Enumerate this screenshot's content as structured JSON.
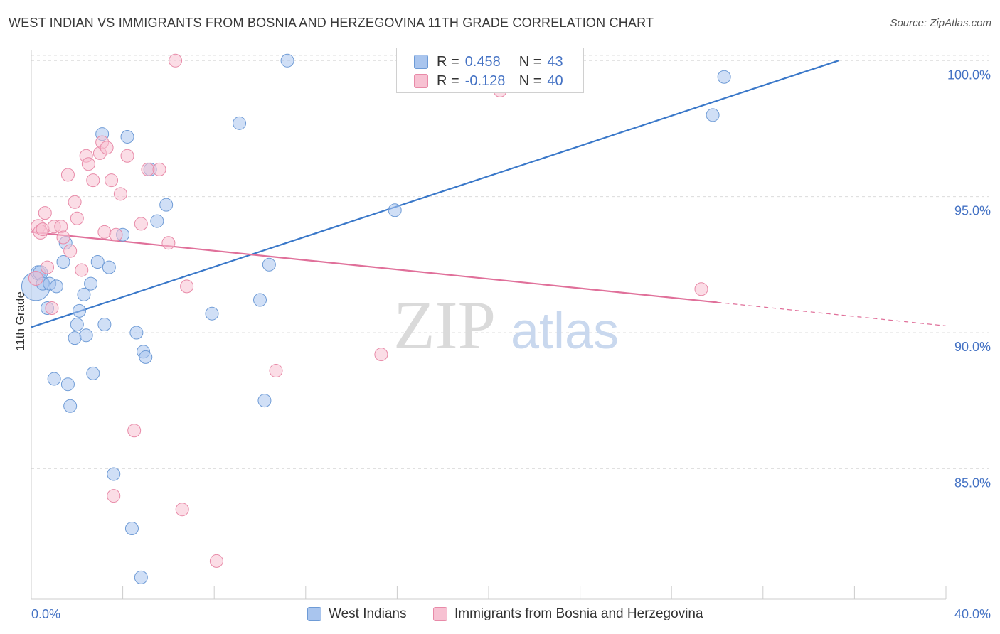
{
  "title": "WEST INDIAN VS IMMIGRANTS FROM BOSNIA AND HERZEGOVINA 11TH GRADE CORRELATION CHART",
  "source": "Source: ZipAtlas.com",
  "watermark": {
    "zip": "ZIP",
    "atlas": "atlas"
  },
  "legend_stats": [
    {
      "r_label": "R =",
      "r_value": "0.458",
      "n_label": "N =",
      "n_value": "43",
      "color": "#a9c5ee",
      "border": "#6e9bd6"
    },
    {
      "r_label": "R =",
      "r_value": "-0.128",
      "n_label": "N =",
      "n_value": "40",
      "color": "#f7c1d2",
      "border": "#e88aa8"
    }
  ],
  "bottom_legend": [
    {
      "label": "West Indians",
      "color": "#a9c5ee",
      "border": "#6e9bd6"
    },
    {
      "label": "Immigrants from Bosnia and Herzegovina",
      "color": "#f7c1d2",
      "border": "#e88aa8"
    }
  ],
  "chart_data": {
    "type": "scatter",
    "title": "WEST INDIAN VS IMMIGRANTS FROM BOSNIA AND HERZEGOVINA 11TH GRADE CORRELATION CHART",
    "xlabel": "",
    "ylabel": "11th Grade",
    "xlim": [
      0,
      40
    ],
    "ylim": [
      80.2,
      100.4
    ],
    "x_tick_labels": [
      {
        "value": 0,
        "label": "0.0%"
      },
      {
        "value": 40,
        "label": "40.0%"
      }
    ],
    "x_minor_ticks": [
      4,
      8,
      12,
      16,
      20,
      24,
      28,
      32,
      36,
      40
    ],
    "y_ticks": [
      {
        "value": 100,
        "label": "100.0%"
      },
      {
        "value": 95,
        "label": "95.0%"
      },
      {
        "value": 90,
        "label": "90.0%"
      },
      {
        "value": 85,
        "label": "85.0%"
      }
    ],
    "series": [
      {
        "name": "West Indians",
        "color": "#a9c5ee",
        "stroke": "#6e9bd6",
        "line_color": "#3a78c9",
        "trend": {
          "x0": 0,
          "y0": 90.2,
          "x1": 35.3,
          "y1": 100.0,
          "dashed_from": null
        },
        "points": [
          [
            0.2,
            91.7,
            20
          ],
          [
            0.3,
            92.2,
            10
          ],
          [
            0.4,
            92.2,
            10
          ],
          [
            0.5,
            91.8,
            9
          ],
          [
            0.7,
            90.9,
            9
          ],
          [
            0.8,
            91.8,
            9
          ],
          [
            1.0,
            88.3,
            9
          ],
          [
            1.1,
            91.7,
            9
          ],
          [
            1.4,
            92.6,
            9
          ],
          [
            1.5,
            93.3,
            9
          ],
          [
            1.6,
            88.1,
            9
          ],
          [
            1.7,
            87.3,
            9
          ],
          [
            1.9,
            89.8,
            9
          ],
          [
            2.0,
            90.3,
            9
          ],
          [
            2.1,
            90.8,
            9
          ],
          [
            2.3,
            91.4,
            9
          ],
          [
            2.4,
            89.9,
            9
          ],
          [
            2.6,
            91.8,
            9
          ],
          [
            2.7,
            88.5,
            9
          ],
          [
            2.9,
            92.6,
            9
          ],
          [
            3.1,
            97.3,
            9
          ],
          [
            3.2,
            90.3,
            9
          ],
          [
            3.4,
            92.4,
            9
          ],
          [
            3.6,
            84.8,
            9
          ],
          [
            4.0,
            93.6,
            9
          ],
          [
            4.2,
            97.2,
            9
          ],
          [
            4.4,
            82.8,
            9
          ],
          [
            4.6,
            90.0,
            9
          ],
          [
            4.8,
            81.0,
            9
          ],
          [
            4.9,
            89.3,
            9
          ],
          [
            5.0,
            89.1,
            9
          ],
          [
            5.2,
            96.0,
            9
          ],
          [
            5.5,
            94.1,
            9
          ],
          [
            5.9,
            94.7,
            9
          ],
          [
            7.9,
            90.7,
            9
          ],
          [
            9.1,
            97.7,
            9
          ],
          [
            10.0,
            91.2,
            9
          ],
          [
            10.2,
            87.5,
            9
          ],
          [
            10.4,
            92.5,
            9
          ],
          [
            11.2,
            100.0,
            9
          ],
          [
            15.9,
            94.5,
            9
          ],
          [
            29.8,
            98.0,
            9
          ],
          [
            30.3,
            99.4,
            9
          ]
        ]
      },
      {
        "name": "Immigrants from Bosnia and Herzegovina",
        "color": "#f7c1d2",
        "stroke": "#e88aa8",
        "line_color": "#e0709a",
        "trend": {
          "x0": 0,
          "y0": 93.7,
          "x1": 40,
          "y1": 90.25,
          "dashed_from": 30.0
        },
        "points": [
          [
            0.2,
            92.0,
            10
          ],
          [
            0.3,
            93.9,
            10
          ],
          [
            0.4,
            93.7,
            10
          ],
          [
            0.5,
            93.8,
            9
          ],
          [
            0.6,
            94.4,
            9
          ],
          [
            0.7,
            92.4,
            9
          ],
          [
            0.9,
            90.9,
            9
          ],
          [
            1.0,
            93.9,
            9
          ],
          [
            1.3,
            93.9,
            9
          ],
          [
            1.4,
            93.5,
            9
          ],
          [
            1.6,
            95.8,
            9
          ],
          [
            1.7,
            93.0,
            9
          ],
          [
            1.9,
            94.8,
            9
          ],
          [
            2.0,
            94.2,
            9
          ],
          [
            2.2,
            92.3,
            9
          ],
          [
            2.4,
            96.5,
            9
          ],
          [
            2.5,
            96.2,
            9
          ],
          [
            2.7,
            95.6,
            9
          ],
          [
            3.0,
            96.6,
            9
          ],
          [
            3.1,
            97.0,
            9
          ],
          [
            3.2,
            93.7,
            9
          ],
          [
            3.3,
            96.8,
            9
          ],
          [
            3.5,
            95.6,
            9
          ],
          [
            3.6,
            84.0,
            9
          ],
          [
            3.7,
            93.6,
            9
          ],
          [
            3.9,
            95.1,
            9
          ],
          [
            4.2,
            96.5,
            9
          ],
          [
            4.5,
            86.4,
            9
          ],
          [
            4.8,
            94.0,
            9
          ],
          [
            5.1,
            96.0,
            9
          ],
          [
            5.6,
            96.0,
            9
          ],
          [
            6.0,
            93.3,
            9
          ],
          [
            6.3,
            100.0,
            9
          ],
          [
            6.6,
            83.5,
            9
          ],
          [
            6.8,
            91.7,
            9
          ],
          [
            8.1,
            81.6,
            9
          ],
          [
            10.7,
            88.6,
            9
          ],
          [
            15.3,
            89.2,
            9
          ],
          [
            20.5,
            98.9,
            9
          ],
          [
            29.3,
            91.6,
            9
          ]
        ]
      }
    ]
  }
}
